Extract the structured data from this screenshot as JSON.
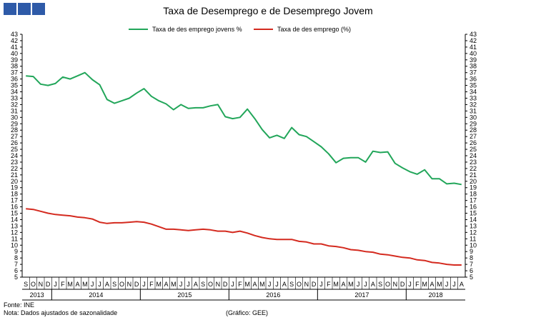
{
  "colors": {
    "brand": "#2e5aa8",
    "youth_line": "#22a65a",
    "total_line": "#d42a1f",
    "axis": "#000000"
  },
  "logo": {
    "blocks": 3
  },
  "chart_data": {
    "type": "line",
    "title": "Taxa de Desemprego  e de Desemprego Jovem",
    "xlabel": "",
    "ylabel": "",
    "ylim": [
      5,
      43
    ],
    "grid": false,
    "legend_position": "top-center",
    "y_ticks": [
      5,
      6,
      7,
      8,
      9,
      10,
      11,
      12,
      13,
      14,
      15,
      16,
      17,
      18,
      19,
      20,
      21,
      22,
      23,
      24,
      25,
      26,
      27,
      28,
      29,
      30,
      31,
      32,
      33,
      34,
      35,
      36,
      37,
      38,
      39,
      40,
      41,
      42,
      43
    ],
    "x": [
      "S",
      "O",
      "N",
      "D",
      "J",
      "F",
      "M",
      "A",
      "M",
      "J",
      "J",
      "A",
      "S",
      "O",
      "N",
      "D",
      "J",
      "F",
      "M",
      "A",
      "M",
      "J",
      "J",
      "A",
      "S",
      "O",
      "N",
      "D",
      "J",
      "F",
      "M",
      "A",
      "M",
      "J",
      "J",
      "A",
      "S",
      "O",
      "N",
      "D",
      "J",
      "F",
      "M",
      "A",
      "M",
      "J",
      "J",
      "A",
      "S",
      "O",
      "N",
      "D",
      "J",
      "F",
      "M",
      "A",
      "M",
      "J",
      "J",
      "A"
    ],
    "years": [
      {
        "label": "2013",
        "start": 0,
        "count": 4
      },
      {
        "label": "2014",
        "start": 4,
        "count": 12
      },
      {
        "label": "2015",
        "start": 16,
        "count": 12
      },
      {
        "label": "2016",
        "start": 28,
        "count": 12
      },
      {
        "label": "2017",
        "start": 40,
        "count": 12
      },
      {
        "label": "2018",
        "start": 52,
        "count": 8
      }
    ],
    "series": [
      {
        "name": "Taxa de des emprego jovens %",
        "color": "#22a65a",
        "values": [
          36.5,
          36.4,
          35.2,
          35.0,
          35.3,
          36.3,
          36.0,
          36.5,
          37.0,
          35.9,
          35.1,
          32.8,
          32.2,
          32.6,
          33.0,
          33.8,
          34.5,
          33.3,
          32.6,
          32.1,
          31.2,
          32.0,
          31.4,
          31.5,
          31.5,
          31.8,
          32.0,
          30.1,
          29.8,
          30.0,
          31.3,
          29.8,
          28.1,
          26.8,
          27.2,
          26.7,
          28.4,
          27.3,
          27.0,
          26.2,
          25.4,
          24.3,
          22.9,
          23.6,
          23.7,
          23.7,
          23.0,
          24.7,
          24.5,
          24.6,
          22.8,
          22.1,
          21.5,
          21.1,
          21.8,
          20.4,
          20.4,
          19.6,
          19.7,
          19.5
        ]
      },
      {
        "name": "Taxa de des emprego (%)",
        "color": "#d42a1f",
        "values": [
          15.7,
          15.6,
          15.3,
          15.0,
          14.8,
          14.7,
          14.6,
          14.4,
          14.3,
          14.1,
          13.6,
          13.4,
          13.5,
          13.5,
          13.6,
          13.7,
          13.6,
          13.3,
          12.9,
          12.5,
          12.5,
          12.4,
          12.3,
          12.4,
          12.5,
          12.4,
          12.2,
          12.2,
          12.0,
          12.2,
          11.9,
          11.5,
          11.2,
          11.0,
          10.9,
          10.9,
          10.9,
          10.6,
          10.5,
          10.2,
          10.2,
          9.9,
          9.8,
          9.6,
          9.3,
          9.2,
          9.0,
          8.9,
          8.6,
          8.5,
          8.3,
          8.1,
          8.0,
          7.7,
          7.6,
          7.3,
          7.2,
          7.0,
          6.9,
          6.9
        ]
      }
    ]
  },
  "footer": {
    "source": "Fonte: INE",
    "note": "Nota: Dados ajustados de sazonalidade",
    "credit": "(Gráfico: GEE)"
  }
}
